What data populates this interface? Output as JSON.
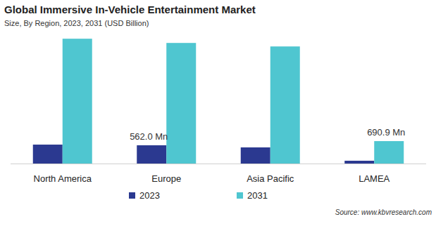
{
  "chart_data": {
    "type": "bar",
    "title": "Global Immersive In-Vehicle Entertainment Market",
    "subtitle": "Size, By Region, 2023, 2031 (USD Billion)",
    "source": "Source: www.kbvresearch.com",
    "categories": [
      "North America",
      "Europe",
      "Asia Pacific",
      "LAMEA"
    ],
    "series": [
      {
        "name": "2023",
        "color": "#2b3990",
        "values": [
          583,
          562.0,
          497,
          86
        ],
        "value_labels": [
          null,
          "562.0 Mn",
          null,
          null
        ]
      },
      {
        "name": "2031",
        "color": "#4fc6d0",
        "values": [
          3845,
          3715,
          3607,
          690.9
        ],
        "value_labels": [
          null,
          null,
          null,
          "690.9 Mn"
        ]
      }
    ],
    "ylim": [
      0,
      4000
    ],
    "tick_labels": "x",
    "grid": false,
    "data_labels": true,
    "legend": "bottom"
  }
}
